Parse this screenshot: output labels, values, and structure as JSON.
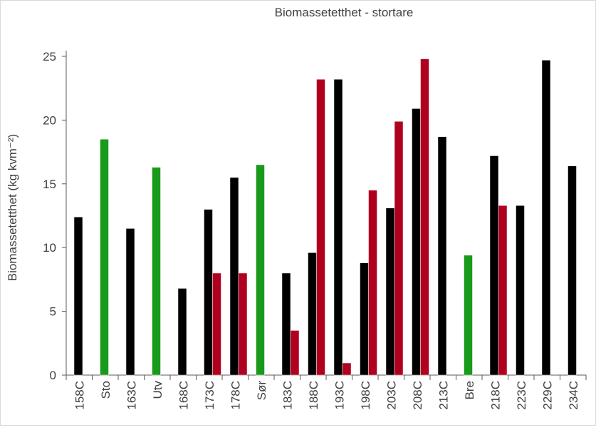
{
  "chart_data": {
    "type": "bar",
    "title": "Biomassetetthet - stortare",
    "xlabel": "",
    "ylabel": "Biomassetetthet  (kg kvm⁻²)",
    "ylim": [
      0,
      25
    ],
    "yticks": [
      0,
      5,
      10,
      15,
      20,
      25
    ],
    "grid": false,
    "legend": "none",
    "categories": [
      "158C",
      "Sto",
      "163C",
      "Utv",
      "168C",
      "173C",
      "178C",
      "Sør",
      "183C",
      "188C",
      "193C",
      "198C",
      "203C",
      "208C",
      "213C",
      "Bre",
      "218C",
      "223C",
      "229C",
      "234C"
    ],
    "series": [
      {
        "name": "series-black",
        "color": "#000000",
        "values": [
          12.4,
          null,
          11.5,
          null,
          6.8,
          13.0,
          15.5,
          null,
          8.0,
          9.6,
          23.2,
          8.8,
          13.1,
          20.9,
          18.7,
          null,
          17.2,
          13.3,
          24.7,
          16.4
        ]
      },
      {
        "name": "series-red",
        "color": "#b00020",
        "values": [
          null,
          null,
          null,
          null,
          null,
          8.0,
          8.0,
          null,
          3.5,
          23.2,
          0.95,
          14.5,
          19.9,
          24.8,
          null,
          null,
          13.3,
          null,
          null,
          null
        ]
      },
      {
        "name": "series-green",
        "color": "#1a9a1a",
        "values": [
          null,
          18.5,
          null,
          16.3,
          null,
          null,
          null,
          16.5,
          null,
          null,
          null,
          null,
          null,
          null,
          null,
          9.4,
          null,
          null,
          null,
          null
        ]
      }
    ]
  }
}
